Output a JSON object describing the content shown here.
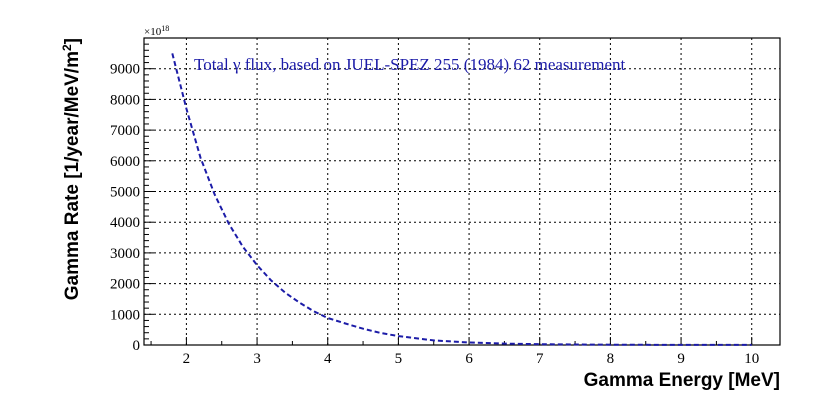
{
  "chart_data": {
    "type": "line",
    "title": "",
    "xlabel": "Gamma Energy [MeV]",
    "ylabel_main": "Gamma Rate [1/year/MeV/m",
    "ylabel_sup": "2",
    "ylabel_close": "]",
    "y_multiplier_base": "×10",
    "y_multiplier_exp": "18",
    "xlim": [
      1.4,
      10.4
    ],
    "ylim": [
      0,
      10000
    ],
    "x_ticks": [
      2,
      3,
      4,
      5,
      6,
      7,
      8,
      9,
      10
    ],
    "y_ticks": [
      0,
      1000,
      2000,
      3000,
      4000,
      5000,
      6000,
      7000,
      8000,
      9000
    ],
    "grid": true,
    "legend_placement": "top",
    "series": [
      {
        "name": "Total γ flux, based on JUEL-SPEZ 255 (1984) 62 measurement",
        "color": "#1c1ca8",
        "style": "dashed",
        "x": [
          1.8,
          2.0,
          2.2,
          2.4,
          2.6,
          2.8,
          3.0,
          3.2,
          3.4,
          3.6,
          3.8,
          4.0,
          4.25,
          4.5,
          4.75,
          5.0,
          5.5,
          6.0,
          6.5,
          7.0,
          7.5,
          8.0,
          8.5,
          9.0,
          9.5,
          10.0
        ],
        "y": [
          9500,
          7700,
          6100,
          4900,
          3950,
          3200,
          2600,
          2100,
          1700,
          1380,
          1100,
          880,
          700,
          530,
          390,
          290,
          150,
          80,
          45,
          25,
          15,
          9,
          6,
          4,
          3,
          2
        ]
      }
    ],
    "axes_color": "#000000",
    "grid_color": "#000000"
  }
}
